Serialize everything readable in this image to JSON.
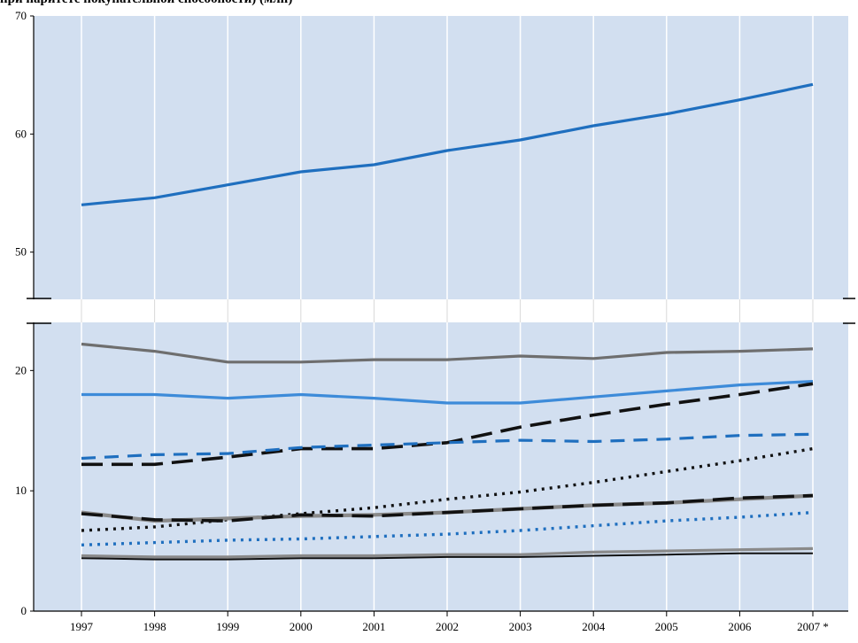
{
  "chart_data": {
    "type": "line",
    "title": "при паритете покупательной способности) (млн)",
    "x": [
      "1997",
      "1998",
      "1999",
      "2000",
      "2001",
      "2002",
      "2003",
      "2004",
      "2005",
      "2006",
      "2007 *"
    ],
    "y_ticks_upper": [
      50,
      60,
      70
    ],
    "y_ticks_lower": [
      0,
      10,
      20
    ],
    "ylim_upper": [
      46,
      70
    ],
    "ylim_lower": [
      0,
      24
    ],
    "axis_break": true,
    "grid": true,
    "series": [
      {
        "color": "#1f6fbf",
        "style": "solid",
        "values": [
          54.0,
          54.6,
          55.7,
          56.8,
          57.4,
          58.6,
          59.5,
          60.7,
          61.7,
          62.9,
          64.2
        ]
      },
      {
        "color": "#6e6e6e",
        "style": "solid",
        "values": [
          22.2,
          21.6,
          20.7,
          20.7,
          20.9,
          20.9,
          21.2,
          21.0,
          21.5,
          21.6,
          21.8
        ]
      },
      {
        "color": "#3d8bd9",
        "style": "solid",
        "values": [
          18.0,
          18.0,
          17.7,
          18.0,
          17.7,
          17.3,
          17.3,
          17.8,
          18.3,
          18.8,
          19.1
        ]
      },
      {
        "color": "#111111",
        "style": "long-dash",
        "values": [
          12.2,
          12.2,
          12.8,
          13.5,
          13.5,
          14.0,
          15.3,
          16.3,
          17.2,
          18.0,
          18.9
        ]
      },
      {
        "color": "#1f6fbf",
        "style": "dash",
        "values": [
          12.7,
          13.0,
          13.1,
          13.6,
          13.8,
          14.0,
          14.2,
          14.1,
          14.3,
          14.6,
          14.7
        ]
      },
      {
        "color": "#111111",
        "style": "dot",
        "values": [
          6.7,
          7.0,
          7.6,
          8.1,
          8.6,
          9.3,
          9.9,
          10.7,
          11.6,
          12.5,
          13.5
        ]
      },
      {
        "color": "#8a8a8a",
        "style": "solid-thick",
        "values": [
          8.2,
          7.5,
          7.7,
          7.9,
          8.0,
          8.2,
          8.5,
          8.8,
          9.0,
          9.3,
          9.6
        ]
      },
      {
        "color": "#111111",
        "style": "long-dash",
        "values": [
          8.1,
          7.6,
          7.5,
          8.0,
          7.9,
          8.2,
          8.5,
          8.8,
          9.0,
          9.4,
          9.6
        ]
      },
      {
        "color": "#1f6fbf",
        "style": "dot",
        "values": [
          5.5,
          5.7,
          5.9,
          6.0,
          6.2,
          6.4,
          6.7,
          7.1,
          7.5,
          7.8,
          8.2
        ]
      },
      {
        "color": "#8a8a8a",
        "style": "solid",
        "values": [
          4.6,
          4.5,
          4.5,
          4.6,
          4.6,
          4.7,
          4.7,
          4.9,
          5.0,
          5.1,
          5.2
        ]
      },
      {
        "color": "#111111",
        "style": "solid-thin",
        "values": [
          4.4,
          4.3,
          4.3,
          4.4,
          4.4,
          4.5,
          4.5,
          4.6,
          4.7,
          4.8,
          4.8
        ]
      }
    ]
  }
}
